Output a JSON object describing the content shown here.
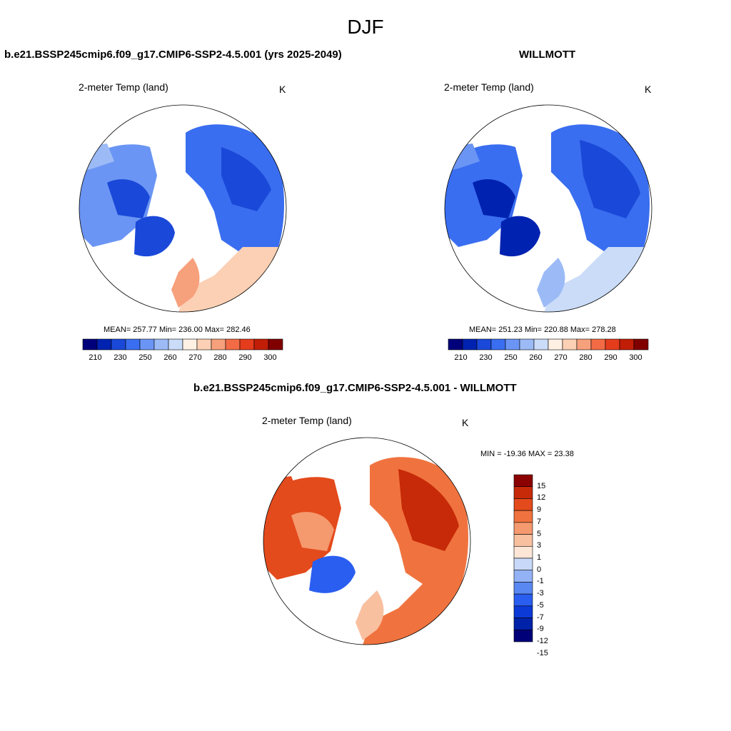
{
  "figure_title": "DJF",
  "colors": {
    "seq": [
      "#00007a",
      "#0022b0",
      "#1a48d8",
      "#3a6ef0",
      "#6b95f4",
      "#9cbbf6",
      "#cadcf8",
      "#fff0e4",
      "#fcd0b4",
      "#f7a07c",
      "#f36b45",
      "#e53c1c",
      "#c21d06",
      "#800000"
    ],
    "diff": [
      "#000078",
      "#0022a8",
      "#0b3ad6",
      "#2a5ef0",
      "#5a88f2",
      "#93b2f5",
      "#c8d8f8",
      "#fde6d6",
      "#f9c0a0",
      "#f5996e",
      "#f0733f",
      "#e34a1c",
      "#c72a08",
      "#8b0000"
    ]
  },
  "panels": {
    "model": {
      "title": "b.e21.BSSP245cmip6.f09_g17.CMIP6-SSP2-4.5.001 (yrs 2025-2049)",
      "variable": "2-meter Temp (land)",
      "units": "K",
      "stats": "MEAN= 257.77  Min= 236.00  Max= 282.46",
      "colorbar_labels": [
        "210",
        "230",
        "250",
        "260",
        "270",
        "280",
        "290",
        "300"
      ]
    },
    "obs": {
      "title": "WILLMOTT",
      "variable": "2-meter Temp (land)",
      "units": "K",
      "stats": "MEAN= 251.23  Min= 220.88  Max= 278.28",
      "colorbar_labels": [
        "210",
        "230",
        "250",
        "260",
        "270",
        "280",
        "290",
        "300"
      ]
    },
    "diff": {
      "title": "b.e21.BSSP245cmip6.f09_g17.CMIP6-SSP2-4.5.001 - WILLMOTT",
      "variable": "2-meter Temp (land)",
      "units": "K",
      "stats": "MIN = -19.36 MAX =  23.38",
      "colorbar_labels": [
        "15",
        "12",
        "9",
        "7",
        "5",
        "3",
        "1",
        "0",
        "-1",
        "-3",
        "-5",
        "-7",
        "-9",
        "-12",
        "-15"
      ]
    }
  }
}
